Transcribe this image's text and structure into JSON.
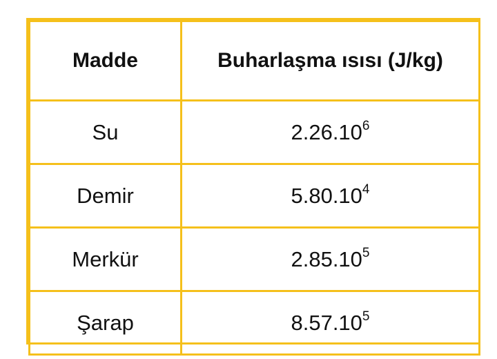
{
  "table": {
    "headers": [
      "Madde",
      "Buharlaşma ısısı (J/kg)"
    ],
    "rows": [
      {
        "substance": "Su",
        "value_base": "2.26.10",
        "value_exponent": "6"
      },
      {
        "substance": "Demir",
        "value_base": "5.80.10",
        "value_exponent": "4"
      },
      {
        "substance": "Merkür",
        "value_base": "2.85.10",
        "value_exponent": "5"
      },
      {
        "substance": "Şarap",
        "value_base": "8.57.10",
        "value_exponent": "5"
      }
    ]
  },
  "colors": {
    "border": "#f5c01b",
    "text": "#111111",
    "background": "#ffffff"
  }
}
